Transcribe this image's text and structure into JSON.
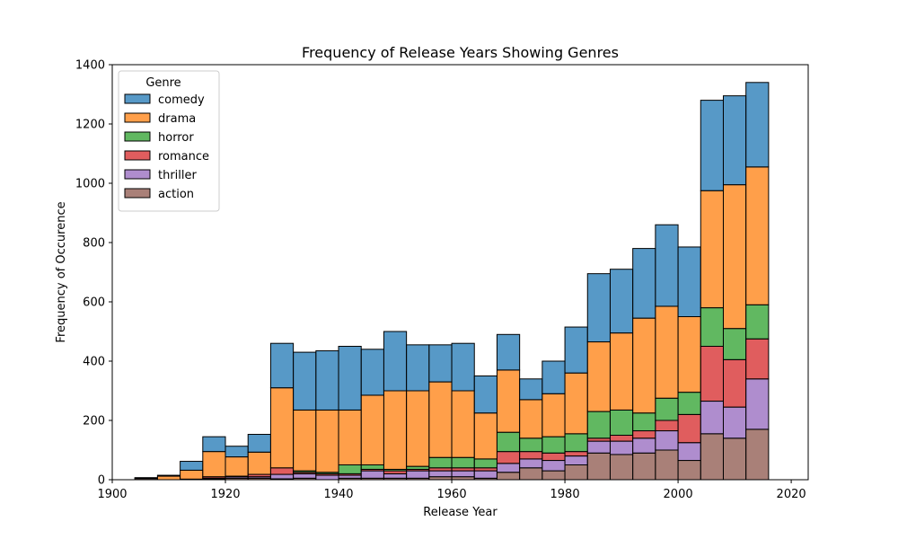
{
  "chart_data": {
    "type": "bar",
    "stacked": true,
    "title": "Frequency of Release Years Showing Genres",
    "xlabel": "Release Year",
    "ylabel": "Frequency of Occurence",
    "xlim": [
      1900,
      2023
    ],
    "ylim": [
      0,
      1400
    ],
    "xticks": [
      1900,
      1920,
      1940,
      1960,
      1980,
      2000,
      2020
    ],
    "yticks": [
      0,
      200,
      400,
      600,
      800,
      1000,
      1200,
      1400
    ],
    "grid": false,
    "legend": {
      "title": "Genre",
      "placement": "upper-left"
    },
    "bin_edges": [
      1904,
      1908,
      1912,
      1916,
      1920,
      1924,
      1928,
      1932,
      1936,
      1940,
      1944,
      1948,
      1952,
      1956,
      1960,
      1964,
      1968,
      1972,
      1976,
      1980,
      1984,
      1988,
      1992,
      1996,
      2000,
      2004,
      2008,
      2012,
      2016
    ],
    "series": [
      {
        "name": "comedy",
        "color": "#1f77b4",
        "values": [
          1,
          3,
          30,
          50,
          36,
          60,
          150,
          195,
          200,
          215,
          155,
          200,
          155,
          125,
          160,
          125,
          120,
          70,
          110,
          155,
          230,
          215,
          235,
          275,
          235,
          305,
          300,
          285
        ]
      },
      {
        "name": "drama",
        "color": "#ff7f0e",
        "values": [
          2,
          12,
          30,
          85,
          65,
          75,
          270,
          205,
          210,
          185,
          235,
          265,
          255,
          255,
          225,
          155,
          210,
          130,
          145,
          205,
          235,
          260,
          320,
          310,
          255,
          395,
          485,
          465
        ]
      },
      {
        "name": "horror",
        "color": "#2ca02c",
        "values": [
          0,
          0,
          0,
          0,
          0,
          0,
          0,
          5,
          5,
          30,
          15,
          5,
          10,
          35,
          35,
          30,
          65,
          45,
          55,
          60,
          90,
          85,
          60,
          75,
          75,
          130,
          105,
          115
        ]
      },
      {
        "name": "romance",
        "color": "#d62728",
        "values": [
          0,
          0,
          0,
          5,
          2,
          8,
          22,
          5,
          5,
          5,
          5,
          10,
          5,
          10,
          10,
          10,
          40,
          25,
          25,
          15,
          10,
          20,
          25,
          35,
          95,
          185,
          160,
          135
        ]
      },
      {
        "name": "thriller",
        "color": "#9467bd",
        "values": [
          0,
          0,
          0,
          3,
          5,
          5,
          15,
          15,
          15,
          10,
          25,
          15,
          25,
          20,
          20,
          25,
          30,
          30,
          35,
          30,
          40,
          45,
          50,
          65,
          60,
          110,
          105,
          170
        ]
      },
      {
        "name": "action",
        "color": "#8c564b",
        "values": [
          4,
          0,
          2,
          2,
          5,
          5,
          3,
          5,
          0,
          5,
          5,
          5,
          5,
          10,
          10,
          5,
          25,
          40,
          30,
          50,
          90,
          85,
          90,
          100,
          65,
          155,
          140,
          170
        ]
      }
    ]
  }
}
